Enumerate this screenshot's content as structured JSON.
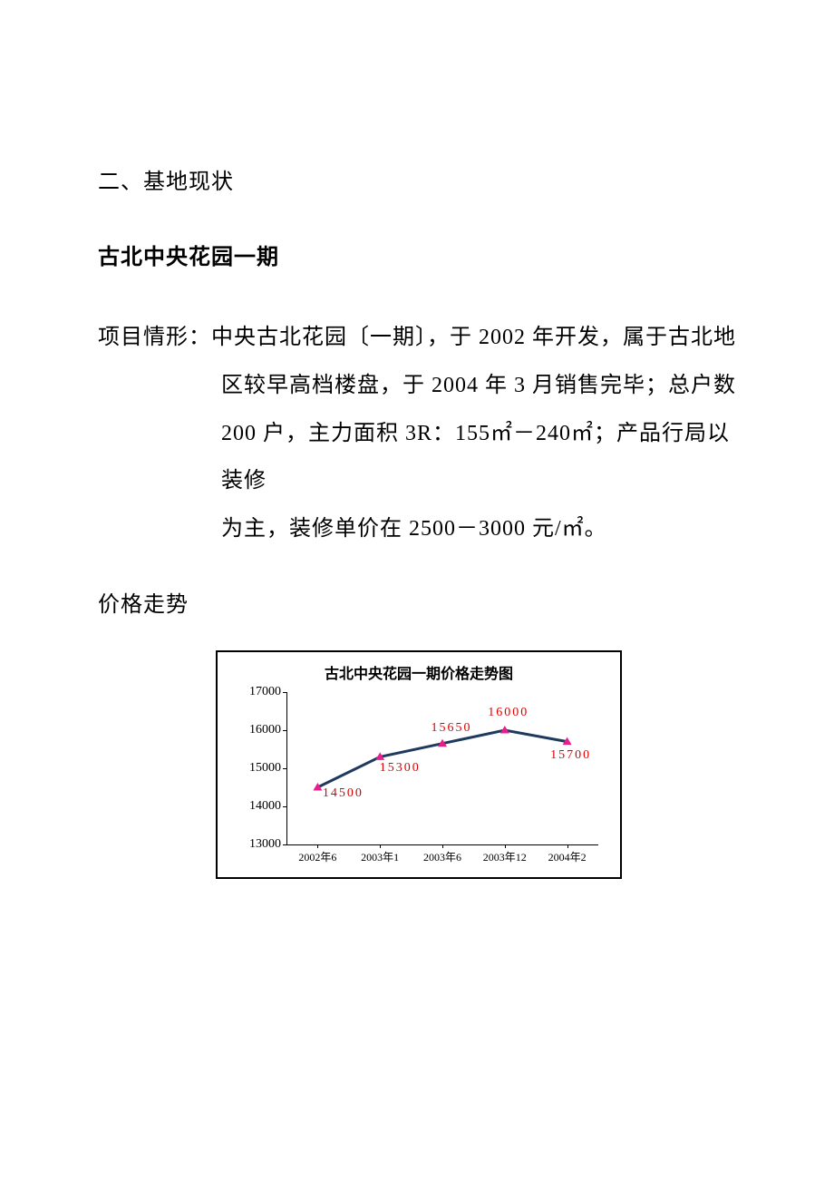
{
  "section_heading": "二、基地现状",
  "sub_heading": "古北中央花园一期",
  "project_label": "项目情形：",
  "project_line1": "中央古北花园〔一期〕，于 2002 年开发，属于古北地",
  "project_line2": "区较早高档楼盘，于 2004 年 3 月销售完毕；总户数",
  "project_line3": "200 户，主力面积 3R：155㎡－240㎡；产品行局以装修",
  "project_line4": "为主，装修单价在 2500－3000 元/㎡。",
  "price_heading": "价格走势",
  "chart": {
    "title": "古北中央花园一期价格走势图",
    "type": "line",
    "ylim": [
      13000,
      17000
    ],
    "ytick_step": 1000,
    "yticks": [
      13000,
      14000,
      15000,
      16000,
      17000
    ],
    "categories": [
      "2002年6",
      "2003年1",
      "2003年6",
      "2003年12",
      "2004年2"
    ],
    "values": [
      14500,
      15300,
      15650,
      16000,
      15700
    ],
    "line_color": "#1f3a5f",
    "line_width": 3,
    "marker_color": "#e91e8c",
    "marker_size": 10,
    "label_color": "#dd0000",
    "background_color": "#ffffff",
    "border_color": "#000000",
    "title_fontsize": 16,
    "axis_fontsize": 14,
    "xlabel_fontsize": 12
  }
}
